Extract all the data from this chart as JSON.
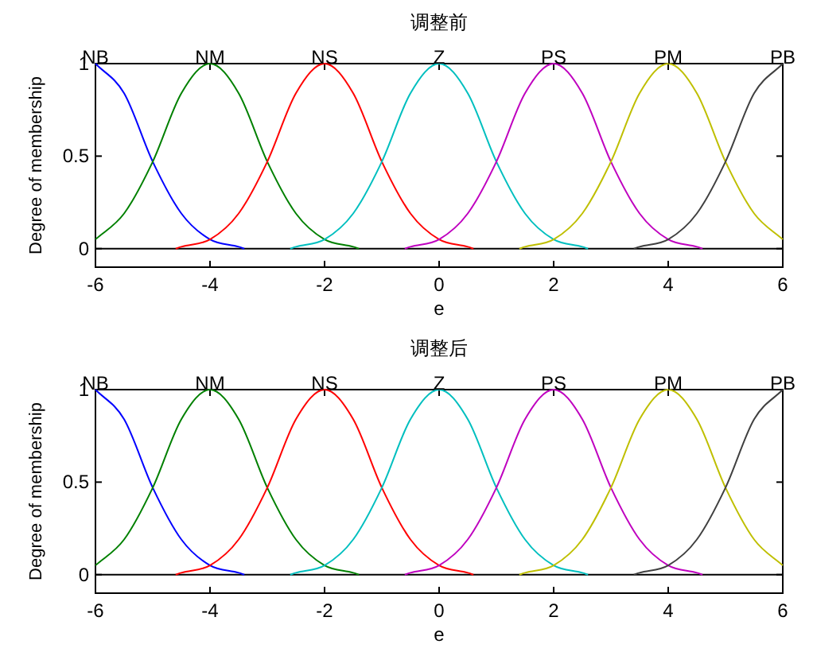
{
  "chart_data": [
    {
      "type": "line",
      "title": "调整前",
      "xlabel": "e",
      "ylabel": "Degree of membership",
      "xlim": [
        -6,
        6
      ],
      "ylim": [
        -0.1,
        1
      ],
      "xticks": [
        -6,
        -4,
        -2,
        0,
        2,
        4,
        6
      ],
      "yticks": [
        0,
        0.5,
        1
      ],
      "ref_lines": [
        {
          "axis": "y",
          "value": 0,
          "color": "#000000"
        }
      ],
      "series": [
        {
          "name": "NB",
          "color": "#0000ff",
          "x": [
            -6,
            -5.5,
            -5,
            -4.5,
            -4,
            -3.5,
            -3.4
          ],
          "values": [
            1,
            0.84,
            0.47,
            0.19,
            0.05,
            0.01,
            0
          ]
        },
        {
          "name": "NM",
          "color": "#008000",
          "x": [
            -6,
            -5.5,
            -5,
            -4.5,
            -4,
            -3.5,
            -3,
            -2.5,
            -2,
            -1.5,
            -1.4
          ],
          "values": [
            0.05,
            0.19,
            0.47,
            0.84,
            1,
            0.84,
            0.47,
            0.19,
            0.05,
            0.01,
            0
          ]
        },
        {
          "name": "NS",
          "color": "#ff0000",
          "x": [
            -4.6,
            -4.5,
            -4,
            -3.5,
            -3,
            -2.5,
            -2,
            -1.5,
            -1,
            -0.5,
            0,
            0.5,
            0.6
          ],
          "values": [
            0,
            0.01,
            0.05,
            0.19,
            0.47,
            0.84,
            1,
            0.84,
            0.47,
            0.19,
            0.05,
            0.01,
            0
          ]
        },
        {
          "name": "Z",
          "color": "#00bfbf",
          "x": [
            -2.6,
            -2.5,
            -2,
            -1.5,
            -1,
            -0.5,
            0,
            0.5,
            1,
            1.5,
            2,
            2.5,
            2.6
          ],
          "values": [
            0,
            0.01,
            0.05,
            0.19,
            0.47,
            0.84,
            1,
            0.84,
            0.47,
            0.19,
            0.05,
            0.01,
            0
          ]
        },
        {
          "name": "PS",
          "color": "#bf00bf",
          "x": [
            -0.6,
            -0.5,
            0,
            0.5,
            1,
            1.5,
            2,
            2.5,
            3,
            3.5,
            4,
            4.5,
            4.6
          ],
          "values": [
            0,
            0.01,
            0.05,
            0.19,
            0.47,
            0.84,
            1,
            0.84,
            0.47,
            0.19,
            0.05,
            0.01,
            0
          ]
        },
        {
          "name": "PM",
          "color": "#bfbf00",
          "x": [
            1.4,
            1.5,
            2,
            2.5,
            3,
            3.5,
            4,
            4.5,
            5,
            5.5,
            6
          ],
          "values": [
            0,
            0.01,
            0.05,
            0.19,
            0.47,
            0.84,
            1,
            0.84,
            0.47,
            0.19,
            0.05
          ]
        },
        {
          "name": "PB",
          "color": "#404040",
          "x": [
            3.4,
            3.5,
            4,
            4.5,
            5,
            5.5,
            6
          ],
          "values": [
            0,
            0.01,
            0.05,
            0.19,
            0.47,
            0.84,
            1
          ]
        }
      ]
    },
    {
      "type": "line",
      "title": "调整后",
      "xlabel": "e",
      "ylabel": "Degree of membership",
      "xlim": [
        -6,
        6
      ],
      "ylim": [
        -0.1,
        1
      ],
      "xticks": [
        -6,
        -4,
        -2,
        0,
        2,
        4,
        6
      ],
      "yticks": [
        0,
        0.5,
        1
      ],
      "ref_lines": [
        {
          "axis": "y",
          "value": 0,
          "color": "#000000"
        }
      ],
      "series": [
        {
          "name": "NB",
          "color": "#0000ff",
          "x": [
            -6,
            -5.5,
            -5,
            -4.5,
            -4,
            -3.5,
            -3.4
          ],
          "values": [
            1,
            0.84,
            0.47,
            0.19,
            0.05,
            0.01,
            0
          ]
        },
        {
          "name": "NM",
          "color": "#008000",
          "x": [
            -6,
            -5.5,
            -5,
            -4.5,
            -4,
            -3.5,
            -3,
            -2.5,
            -2,
            -1.5,
            -1.4
          ],
          "values": [
            0.05,
            0.19,
            0.47,
            0.84,
            1,
            0.84,
            0.47,
            0.19,
            0.05,
            0.01,
            0
          ]
        },
        {
          "name": "NS",
          "color": "#ff0000",
          "x": [
            -4.6,
            -4.5,
            -4,
            -3.5,
            -3,
            -2.5,
            -2,
            -1.5,
            -1,
            -0.5,
            0,
            0.5,
            0.6
          ],
          "values": [
            0,
            0.01,
            0.05,
            0.19,
            0.47,
            0.84,
            1,
            0.84,
            0.47,
            0.19,
            0.05,
            0.01,
            0
          ]
        },
        {
          "name": "Z",
          "color": "#00bfbf",
          "x": [
            -2.6,
            -2.5,
            -2,
            -1.5,
            -1,
            -0.5,
            0,
            0.5,
            1,
            1.5,
            2,
            2.5,
            2.6
          ],
          "values": [
            0,
            0.01,
            0.05,
            0.19,
            0.47,
            0.84,
            1,
            0.84,
            0.47,
            0.19,
            0.05,
            0.01,
            0
          ]
        },
        {
          "name": "PS",
          "color": "#bf00bf",
          "x": [
            -0.6,
            -0.5,
            0,
            0.5,
            1,
            1.5,
            2,
            2.5,
            3,
            3.5,
            4,
            4.5,
            4.6
          ],
          "values": [
            0,
            0.01,
            0.05,
            0.19,
            0.47,
            0.84,
            1,
            0.84,
            0.47,
            0.19,
            0.05,
            0.01,
            0
          ]
        },
        {
          "name": "PM",
          "color": "#bfbf00",
          "x": [
            1.4,
            1.5,
            2,
            2.5,
            3,
            3.5,
            4,
            4.5,
            5,
            5.5,
            6
          ],
          "values": [
            0,
            0.01,
            0.05,
            0.19,
            0.47,
            0.84,
            1,
            0.84,
            0.47,
            0.19,
            0.05
          ]
        },
        {
          "name": "PB",
          "color": "#404040",
          "x": [
            3.4,
            3.5,
            4,
            4.5,
            5,
            5.5,
            6
          ],
          "values": [
            0,
            0.01,
            0.05,
            0.19,
            0.47,
            0.84,
            1
          ]
        }
      ]
    }
  ]
}
